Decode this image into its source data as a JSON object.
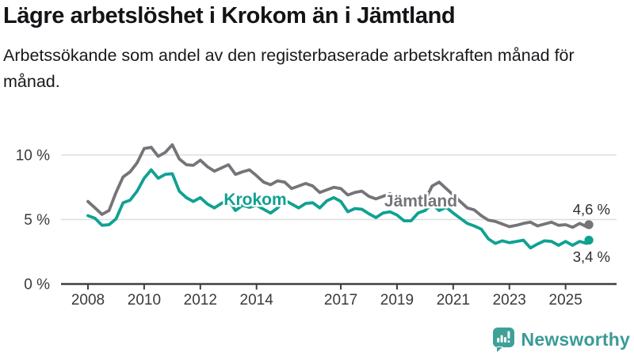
{
  "header": {
    "title": "Lägre arbetslöshet i Krokom än i Jämtland",
    "subtitle": "Arbetssökande som andel av den registerbaserade arbetskraften månad för månad."
  },
  "footer": {
    "brand": "Newsworthy"
  },
  "colors": {
    "krokom": "#0fa192",
    "jamtland": "#767379",
    "axis": "#3f3f3f",
    "grid": "#dedede",
    "tick_text": "#3a3a3a",
    "annotation_text": "#2e2e2e",
    "logo": "#3fa098"
  },
  "chart_data": {
    "type": "line",
    "title": "Lägre arbetslöshet i Krokom än i Jämtland",
    "subtitle": "Arbetssökande som andel av den registerbaserade arbetskraften månad för månad.",
    "xlabel": "",
    "ylabel": "",
    "ylim": [
      0,
      12
    ],
    "xlim": [
      2007.9,
      2026.1
    ],
    "grid": "horizontal",
    "legend_position": "inline-labels",
    "y_ticks": [
      {
        "value": 0,
        "label": "0 %"
      },
      {
        "value": 5,
        "label": "5 %"
      },
      {
        "value": 10,
        "label": "10 %"
      }
    ],
    "x_ticks": [
      2008,
      2010,
      2012,
      2014,
      2017,
      2019,
      2021,
      2023,
      2025
    ],
    "x": [
      2008.0,
      2008.25,
      2008.5,
      2008.75,
      2009.0,
      2009.25,
      2009.5,
      2009.75,
      2010.0,
      2010.25,
      2010.5,
      2010.75,
      2011.0,
      2011.25,
      2011.5,
      2011.75,
      2012.0,
      2012.25,
      2012.5,
      2012.75,
      2013.0,
      2013.25,
      2013.5,
      2013.75,
      2014.0,
      2014.25,
      2014.5,
      2014.75,
      2015.0,
      2015.25,
      2015.5,
      2015.75,
      2016.0,
      2016.25,
      2016.5,
      2016.75,
      2017.0,
      2017.25,
      2017.5,
      2017.75,
      2018.0,
      2018.25,
      2018.5,
      2018.75,
      2019.0,
      2019.25,
      2019.5,
      2019.75,
      2020.0,
      2020.25,
      2020.5,
      2020.75,
      2021.0,
      2021.25,
      2021.5,
      2021.75,
      2022.0,
      2022.25,
      2022.5,
      2022.75,
      2023.0,
      2023.25,
      2023.5,
      2023.75,
      2024.0,
      2024.25,
      2024.5,
      2024.75,
      2025.0,
      2025.25,
      2025.5,
      2025.75,
      2025.83
    ],
    "series": [
      {
        "name": "Jämtland",
        "color": "#767379",
        "end_label": "4,6 %",
        "end_value": 4.6,
        "values": [
          6.4,
          5.9,
          5.4,
          5.7,
          7.1,
          8.3,
          8.7,
          9.4,
          10.5,
          10.6,
          9.9,
          10.2,
          10.8,
          9.7,
          9.25,
          9.2,
          9.6,
          9.1,
          8.75,
          9.0,
          9.25,
          8.5,
          8.7,
          8.85,
          8.4,
          7.9,
          7.7,
          8.0,
          7.9,
          7.4,
          7.6,
          7.8,
          7.6,
          7.1,
          7.3,
          7.5,
          7.4,
          6.9,
          7.1,
          7.2,
          6.8,
          6.6,
          6.8,
          7.0,
          6.7,
          6.2,
          6.1,
          6.25,
          6.5,
          7.6,
          7.9,
          7.4,
          6.9,
          6.4,
          5.9,
          5.75,
          5.3,
          4.95,
          4.85,
          4.65,
          4.45,
          4.55,
          4.7,
          4.8,
          4.5,
          4.65,
          4.8,
          4.55,
          4.6,
          4.4,
          4.7,
          4.45,
          4.6
        ]
      },
      {
        "name": "Krokom",
        "color": "#0fa192",
        "end_label": "3,4 %",
        "end_value": 3.4,
        "values": [
          5.3,
          5.1,
          4.55,
          4.6,
          5.05,
          6.3,
          6.5,
          7.2,
          8.2,
          8.85,
          8.2,
          8.5,
          8.55,
          7.2,
          6.7,
          6.4,
          6.7,
          6.2,
          5.9,
          6.25,
          6.5,
          5.7,
          6.1,
          5.95,
          6.1,
          5.8,
          5.5,
          5.9,
          6.5,
          6.2,
          5.9,
          6.25,
          6.3,
          5.9,
          6.45,
          6.7,
          6.4,
          5.6,
          5.85,
          5.8,
          5.45,
          5.15,
          5.5,
          5.6,
          5.35,
          4.9,
          4.9,
          5.5,
          5.7,
          6.2,
          5.7,
          5.95,
          5.5,
          5.1,
          4.7,
          4.5,
          4.25,
          3.5,
          3.15,
          3.35,
          3.2,
          3.3,
          3.4,
          2.8,
          3.1,
          3.35,
          3.3,
          3.0,
          3.3,
          3.0,
          3.3,
          3.15,
          3.4
        ]
      }
    ]
  }
}
